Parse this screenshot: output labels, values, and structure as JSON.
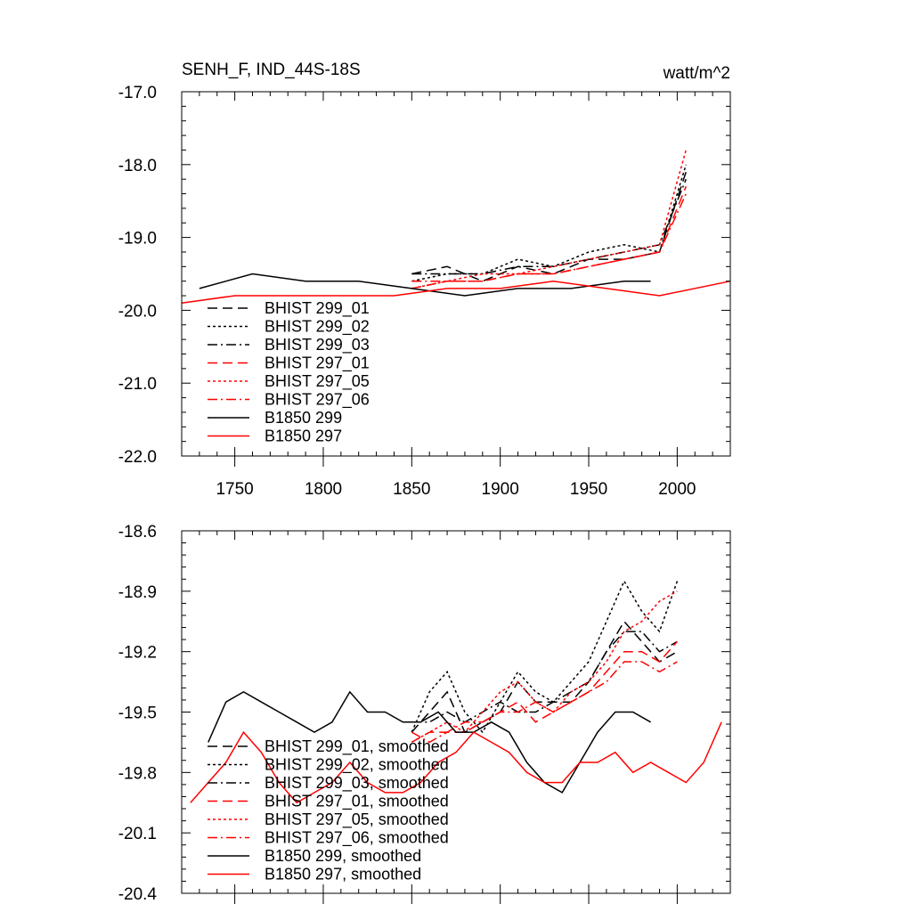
{
  "chart_data": [
    {
      "type": "line",
      "title": "SENH_F, IND_44S-18S",
      "units": "watt/m^2",
      "xlim": [
        1720,
        2030
      ],
      "ylim": [
        -22.0,
        -17.0
      ],
      "xticks": [
        1750,
        1800,
        1850,
        1900,
        1950,
        2000
      ],
      "xtick_labels": [
        "1750",
        "1800",
        "1850",
        "1900",
        "1950",
        "2000"
      ],
      "yticks": [
        -22.0,
        -21.0,
        -20.0,
        -19.0,
        -18.0,
        -17.0
      ],
      "ytick_labels": [
        "-22.0",
        "-21.0",
        "-20.0",
        "-19.0",
        "-18.0",
        "-17.0"
      ],
      "legend_position": "lower-left",
      "series": [
        {
          "name": "BHIST 299_01",
          "color": "#000000",
          "dash": "dash",
          "x": [
            1850,
            1870,
            1890,
            1910,
            1930,
            1950,
            1970,
            1990,
            2005
          ],
          "y": [
            -19.5,
            -19.4,
            -19.6,
            -19.4,
            -19.5,
            -19.3,
            -19.3,
            -19.2,
            -18.1
          ]
        },
        {
          "name": "BHIST 299_02",
          "color": "#000000",
          "dash": "dot",
          "x": [
            1850,
            1870,
            1890,
            1910,
            1930,
            1950,
            1970,
            1990,
            2005
          ],
          "y": [
            -19.6,
            -19.5,
            -19.5,
            -19.3,
            -19.4,
            -19.2,
            -19.1,
            -19.2,
            -18.0
          ]
        },
        {
          "name": "BHIST 299_03",
          "color": "#000000",
          "dash": "dashdot",
          "x": [
            1850,
            1870,
            1890,
            1910,
            1930,
            1950,
            1970,
            1990,
            2005
          ],
          "y": [
            -19.5,
            -19.5,
            -19.5,
            -19.4,
            -19.4,
            -19.3,
            -19.2,
            -19.1,
            -18.2
          ]
        },
        {
          "name": "BHIST 297_01",
          "color": "#ff0000",
          "dash": "dash",
          "x": [
            1850,
            1870,
            1890,
            1910,
            1930,
            1950,
            1970,
            1990,
            2005
          ],
          "y": [
            -19.7,
            -19.6,
            -19.6,
            -19.5,
            -19.5,
            -19.4,
            -19.3,
            -19.2,
            -18.3
          ]
        },
        {
          "name": "BHIST 297_05",
          "color": "#ff0000",
          "dash": "dot",
          "x": [
            1850,
            1870,
            1890,
            1910,
            1930,
            1950,
            1970,
            1990,
            2005
          ],
          "y": [
            -19.7,
            -19.6,
            -19.5,
            -19.5,
            -19.4,
            -19.3,
            -19.2,
            -19.1,
            -17.8
          ]
        },
        {
          "name": "BHIST 297_06",
          "color": "#ff0000",
          "dash": "dashdot",
          "x": [
            1850,
            1870,
            1890,
            1910,
            1930,
            1950,
            1970,
            1990,
            2005
          ],
          "y": [
            -19.6,
            -19.6,
            -19.6,
            -19.5,
            -19.5,
            -19.4,
            -19.3,
            -19.2,
            -18.4
          ]
        },
        {
          "name": "B1850 299",
          "color": "#000000",
          "dash": "solid",
          "x": [
            1730,
            1760,
            1790,
            1820,
            1850,
            1880,
            1910,
            1940,
            1970,
            1985
          ],
          "y": [
            -19.7,
            -19.5,
            -19.6,
            -19.6,
            -19.7,
            -19.8,
            -19.7,
            -19.7,
            -19.6,
            -19.6
          ]
        },
        {
          "name": "B1850 297",
          "color": "#ff0000",
          "dash": "solid",
          "x": [
            1720,
            1750,
            1780,
            1810,
            1840,
            1870,
            1900,
            1930,
            1960,
            1990,
            2030
          ],
          "y": [
            -19.9,
            -19.8,
            -19.8,
            -19.8,
            -19.8,
            -19.7,
            -19.7,
            -19.6,
            -19.7,
            -19.8,
            -19.6
          ]
        }
      ]
    },
    {
      "type": "line",
      "xlim": [
        1720,
        2030
      ],
      "ylim": [
        -20.4,
        -18.6
      ],
      "xticks": [
        1750,
        1800,
        1850,
        1900,
        1950,
        2000
      ],
      "yticks": [
        -20.4,
        -20.1,
        -19.8,
        -19.5,
        -19.2,
        -18.9,
        -18.6
      ],
      "ytick_labels": [
        "-20.4",
        "-20.1",
        "-19.8",
        "-19.5",
        "-19.2",
        "-18.9",
        "-18.6"
      ],
      "legend_position": "lower-left",
      "series": [
        {
          "name": "BHIST 299_01, smoothed",
          "color": "#000000",
          "dash": "dash",
          "x": [
            1850,
            1860,
            1870,
            1880,
            1890,
            1900,
            1910,
            1920,
            1930,
            1940,
            1950,
            1960,
            1970,
            1980,
            1990,
            2000
          ],
          "y": [
            -19.6,
            -19.5,
            -19.4,
            -19.6,
            -19.55,
            -19.5,
            -19.35,
            -19.45,
            -19.45,
            -19.45,
            -19.35,
            -19.2,
            -19.05,
            -19.15,
            -19.25,
            -19.2
          ]
        },
        {
          "name": "BHIST 299_02, smoothed",
          "color": "#000000",
          "dash": "dot",
          "x": [
            1850,
            1860,
            1870,
            1880,
            1890,
            1900,
            1910,
            1920,
            1930,
            1940,
            1950,
            1960,
            1970,
            1980,
            1990,
            2000
          ],
          "y": [
            -19.6,
            -19.4,
            -19.3,
            -19.5,
            -19.6,
            -19.45,
            -19.3,
            -19.4,
            -19.45,
            -19.35,
            -19.25,
            -19.05,
            -18.85,
            -19.0,
            -19.1,
            -18.85
          ]
        },
        {
          "name": "BHIST 299_03, smoothed",
          "color": "#000000",
          "dash": "dashdot",
          "x": [
            1850,
            1860,
            1870,
            1880,
            1890,
            1900,
            1910,
            1920,
            1930,
            1940,
            1950,
            1960,
            1970,
            1980,
            1990,
            2000
          ],
          "y": [
            -19.55,
            -19.55,
            -19.5,
            -19.55,
            -19.5,
            -19.45,
            -19.5,
            -19.5,
            -19.45,
            -19.4,
            -19.35,
            -19.2,
            -19.1,
            -19.1,
            -19.2,
            -19.15
          ]
        },
        {
          "name": "BHIST 297_01, smoothed",
          "color": "#ff0000",
          "dash": "dash",
          "x": [
            1850,
            1860,
            1870,
            1880,
            1890,
            1900,
            1910,
            1920,
            1930,
            1940,
            1950,
            1960,
            1970,
            1980,
            1990,
            2000
          ],
          "y": [
            -19.65,
            -19.6,
            -19.6,
            -19.6,
            -19.55,
            -19.5,
            -19.45,
            -19.55,
            -19.5,
            -19.45,
            -19.4,
            -19.3,
            -19.2,
            -19.2,
            -19.25,
            -19.15
          ]
        },
        {
          "name": "BHIST 297_05, smoothed",
          "color": "#ff0000",
          "dash": "dot",
          "x": [
            1850,
            1860,
            1870,
            1880,
            1890,
            1900,
            1910,
            1920,
            1930,
            1940,
            1950,
            1960,
            1970,
            1980,
            1990,
            2000
          ],
          "y": [
            -19.65,
            -19.6,
            -19.55,
            -19.6,
            -19.5,
            -19.4,
            -19.35,
            -19.45,
            -19.5,
            -19.4,
            -19.35,
            -19.25,
            -19.1,
            -19.05,
            -18.95,
            -18.9
          ]
        },
        {
          "name": "BHIST 297_06, smoothed",
          "color": "#ff0000",
          "dash": "dashdot",
          "x": [
            1850,
            1860,
            1870,
            1880,
            1890,
            1900,
            1910,
            1920,
            1930,
            1940,
            1950,
            1960,
            1970,
            1980,
            1990,
            2000
          ],
          "y": [
            -19.6,
            -19.65,
            -19.6,
            -19.55,
            -19.55,
            -19.5,
            -19.5,
            -19.45,
            -19.5,
            -19.45,
            -19.4,
            -19.35,
            -19.25,
            -19.25,
            -19.3,
            -19.25
          ]
        },
        {
          "name": "B1850 299, smoothed",
          "color": "#000000",
          "dash": "solid",
          "x": [
            1735,
            1745,
            1755,
            1765,
            1775,
            1785,
            1795,
            1805,
            1815,
            1825,
            1835,
            1845,
            1855,
            1865,
            1875,
            1885,
            1895,
            1905,
            1915,
            1925,
            1935,
            1945,
            1955,
            1965,
            1975,
            1985
          ],
          "y": [
            -19.65,
            -19.45,
            -19.4,
            -19.45,
            -19.5,
            -19.55,
            -19.6,
            -19.55,
            -19.4,
            -19.5,
            -19.5,
            -19.55,
            -19.55,
            -19.5,
            -19.6,
            -19.6,
            -19.55,
            -19.6,
            -19.75,
            -19.85,
            -19.9,
            -19.75,
            -19.6,
            -19.5,
            -19.5,
            -19.55
          ]
        },
        {
          "name": "B1850 297, smoothed",
          "color": "#ff0000",
          "dash": "solid",
          "x": [
            1725,
            1735,
            1745,
            1755,
            1765,
            1775,
            1785,
            1795,
            1805,
            1815,
            1825,
            1835,
            1845,
            1855,
            1865,
            1875,
            1885,
            1895,
            1905,
            1915,
            1925,
            1935,
            1945,
            1955,
            1965,
            1975,
            1985,
            1995,
            2005,
            2015,
            2025
          ],
          "y": [
            -19.95,
            -19.85,
            -19.75,
            -19.6,
            -19.7,
            -19.85,
            -19.95,
            -19.9,
            -19.85,
            -19.75,
            -19.85,
            -19.9,
            -19.9,
            -19.85,
            -19.75,
            -19.7,
            -19.6,
            -19.65,
            -19.7,
            -19.8,
            -19.85,
            -19.85,
            -19.75,
            -19.75,
            -19.7,
            -19.8,
            -19.75,
            -19.8,
            -19.85,
            -19.75,
            -19.55
          ]
        }
      ]
    }
  ]
}
